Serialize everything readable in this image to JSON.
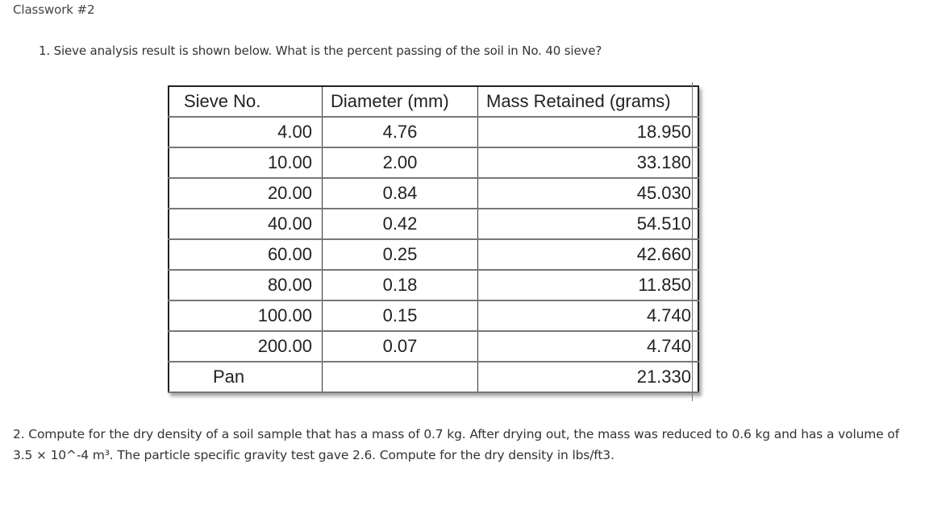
{
  "page_title": "Classwork #2",
  "question_1": "1. Sieve analysis result is shown below. What is the percent passing of the soil in No. 40 sieve?",
  "table": {
    "headers": [
      "Sieve No.",
      "Diameter (mm)",
      "Mass Retained (grams)"
    ],
    "rows": [
      {
        "sieve": "4.00",
        "diameter": "4.76",
        "mass": "18.950"
      },
      {
        "sieve": "10.00",
        "diameter": "2.00",
        "mass": "33.180"
      },
      {
        "sieve": "20.00",
        "diameter": "0.84",
        "mass": "45.030"
      },
      {
        "sieve": "40.00",
        "diameter": "0.42",
        "mass": "54.510"
      },
      {
        "sieve": "60.00",
        "diameter": "0.25",
        "mass": "42.660"
      },
      {
        "sieve": "80.00",
        "diameter": "0.18",
        "mass": "11.850"
      },
      {
        "sieve": "100.00",
        "diameter": "0.15",
        "mass": "4.740"
      },
      {
        "sieve": "200.00",
        "diameter": "0.07",
        "mass": "4.740"
      },
      {
        "sieve": "Pan",
        "diameter": "",
        "mass": "21.330"
      }
    ]
  },
  "question_2": "2. Compute for the dry density of a soil sample that has a mass of 0.7 kg. After drying out, the mass was reduced to 0.6 kg and has a volume of 3.5 × 10^-4 m³. The particle specific gravity test gave 2.6. Compute for the dry density in lbs/ft3."
}
